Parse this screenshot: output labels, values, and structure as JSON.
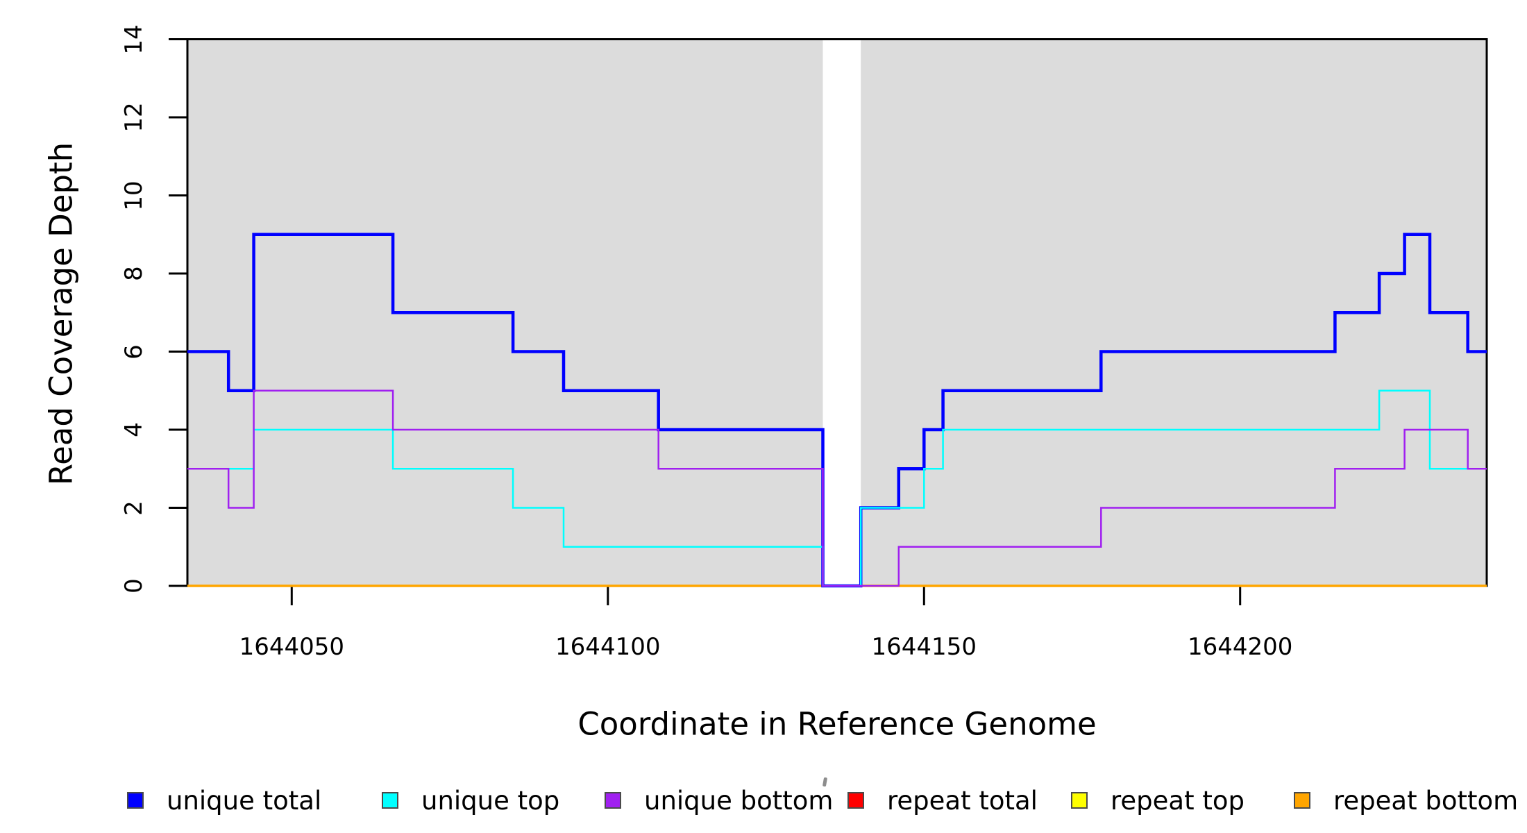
{
  "axis": {
    "xlabel": "Coordinate in Reference Genome",
    "ylabel": "Read Coverage Depth"
  },
  "legend": {
    "items": [
      {
        "label": "unique total",
        "color": "#0000FF"
      },
      {
        "label": "unique top",
        "color": "#00FFFF"
      },
      {
        "label": "unique bottom",
        "color": "#A020F0"
      },
      {
        "label": "repeat total",
        "color": "#FF0000"
      },
      {
        "label": "repeat top",
        "color": "#FFFF00"
      },
      {
        "label": "repeat bottom",
        "color": "#FFA500"
      }
    ]
  },
  "chart_data": {
    "type": "line",
    "subtype": "step",
    "title": "",
    "xlabel": "Coordinate in Reference Genome",
    "ylabel": "Read Coverage Depth",
    "xlim": [
      1644033.5,
      1644239
    ],
    "ylim": [
      0,
      14
    ],
    "xtick_values": [
      1644050,
      1644100,
      1644150,
      1644200
    ],
    "xtick_labels": [
      "1644050",
      "1644100",
      "1644150",
      "1644200"
    ],
    "ytick_values": [
      0,
      2,
      4,
      6,
      8,
      10,
      12,
      14
    ],
    "ytick_labels": [
      "0",
      "2",
      "4",
      "6",
      "8",
      "10",
      "12",
      "14"
    ],
    "grid": false,
    "legend_position": "bottom",
    "panel_background": "#FFFFFF",
    "shaded_regions": [
      {
        "x0": 1644033.5,
        "x1": 1644134,
        "color": "#DCDCDC"
      },
      {
        "x0": 1644140,
        "x1": 1644239,
        "color": "#DCDCDC"
      }
    ],
    "series": [
      {
        "name": "repeat total",
        "color": "#FF0000",
        "lwd": 3,
        "steps": [
          [
            1644033.5,
            0
          ]
        ]
      },
      {
        "name": "repeat top",
        "color": "#FFFF00",
        "lwd": 3,
        "steps": [
          [
            1644033.5,
            0
          ]
        ]
      },
      {
        "name": "repeat bottom",
        "color": "#FFA500",
        "lwd": 3.5,
        "steps": [
          [
            1644033.5,
            0
          ]
        ]
      },
      {
        "name": "unique total",
        "color": "#0000FF",
        "lwd": 4.5,
        "steps": [
          [
            1644033.5,
            6
          ],
          [
            1644040,
            5
          ],
          [
            1644044,
            9
          ],
          [
            1644066,
            7
          ],
          [
            1644085,
            6
          ],
          [
            1644093,
            5
          ],
          [
            1644108,
            4
          ],
          [
            1644134,
            0
          ],
          [
            1644140,
            2
          ],
          [
            1644146,
            3
          ],
          [
            1644150,
            4
          ],
          [
            1644153,
            5
          ],
          [
            1644178,
            6
          ],
          [
            1644215,
            7
          ],
          [
            1644222,
            8
          ],
          [
            1644226,
            9
          ],
          [
            1644230,
            7
          ],
          [
            1644236,
            6
          ]
        ]
      },
      {
        "name": "unique top",
        "color": "#00FFFF",
        "lwd": 2.5,
        "steps": [
          [
            1644033.5,
            3
          ],
          [
            1644044,
            4
          ],
          [
            1644066,
            3
          ],
          [
            1644085,
            2
          ],
          [
            1644093,
            1
          ],
          [
            1644134,
            0
          ],
          [
            1644140,
            2
          ],
          [
            1644150,
            3
          ],
          [
            1644153,
            4
          ],
          [
            1644222,
            5
          ],
          [
            1644230,
            3
          ]
        ]
      },
      {
        "name": "unique bottom",
        "color": "#A020F0",
        "lwd": 2.5,
        "steps": [
          [
            1644033.5,
            3
          ],
          [
            1644040,
            2
          ],
          [
            1644044,
            5
          ],
          [
            1644066,
            4
          ],
          [
            1644108,
            3
          ],
          [
            1644134,
            0
          ],
          [
            1644146,
            1
          ],
          [
            1644178,
            2
          ],
          [
            1644215,
            3
          ],
          [
            1644226,
            4
          ],
          [
            1644236,
            3
          ]
        ]
      }
    ]
  }
}
